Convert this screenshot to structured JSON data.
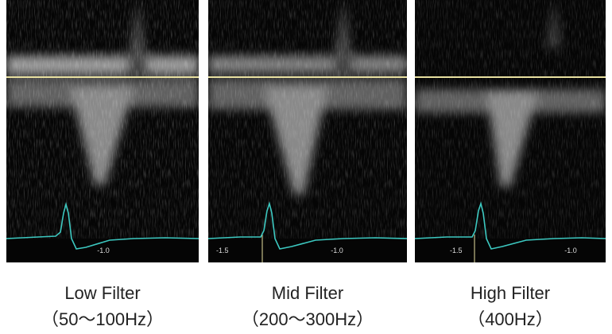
{
  "panels": [
    {
      "caption": [
        "Low Filter",
        "（50〜100Hz）"
      ],
      "scale_labels": [
        "-1.0"
      ]
    },
    {
      "caption": [
        "Mid Filter",
        "（200〜300Hz）"
      ],
      "scale_labels": [
        "-1.5",
        "-1.0"
      ]
    },
    {
      "caption": [
        "High Filter",
        "（400Hz）"
      ],
      "scale_labels": [
        "-1.5",
        "-1.0"
      ]
    }
  ]
}
